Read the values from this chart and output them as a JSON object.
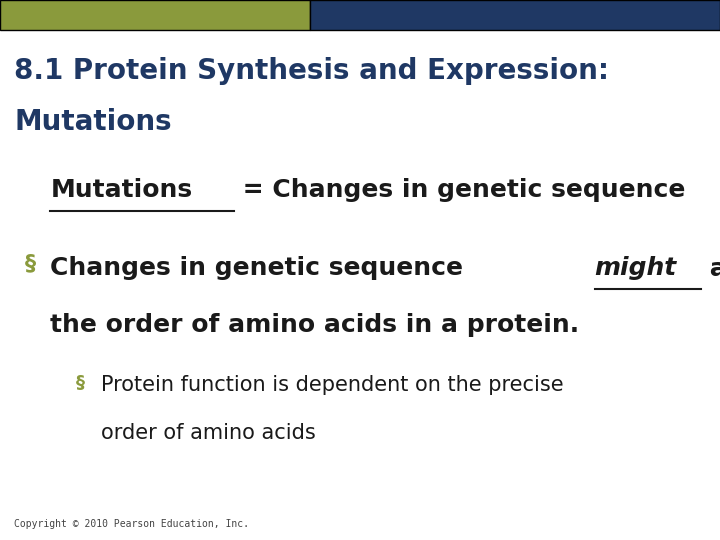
{
  "title_line1": "8.1 Protein Synthesis and Expression:",
  "title_line2": "Mutations",
  "title_color": "#1F3864",
  "title_fontsize": 20,
  "bg_color": "#FFFFFF",
  "header_bar_color1": "#8A9A3C",
  "header_bar_color2": "#1F3864",
  "header_bar_height": 0.055,
  "bullet_color": "#8A9A3C",
  "text_color": "#1a1a1a",
  "copyright_text": "Copyright © 2010 Pearson Education, Inc.",
  "copyright_fontsize": 7,
  "line1_fontsize": 18,
  "bullet1_fontsize": 18,
  "bullet2_fontsize": 15
}
